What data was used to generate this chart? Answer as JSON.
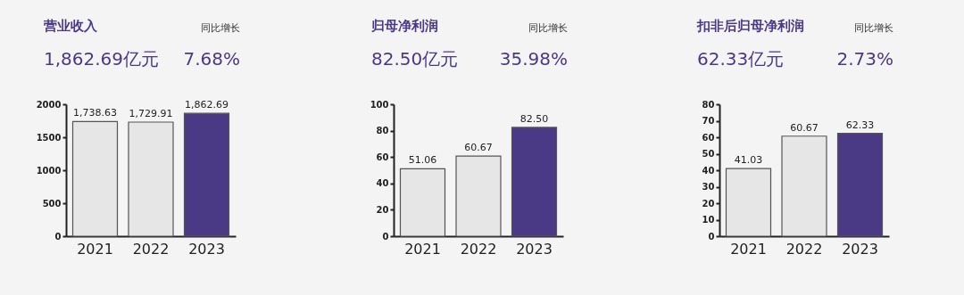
{
  "chart_data": [
    {
      "type": "bar",
      "title": "营业收入",
      "annotations": [
        "同比增长",
        "1,862.69亿元",
        "7.68%"
      ],
      "categories": [
        "2021",
        "2022",
        "2023"
      ],
      "values": [
        1738.63,
        1729.91,
        1862.69
      ],
      "value_labels": [
        "1,738.63",
        "1,729.91",
        "1,862.69"
      ],
      "colors": [
        "#e6e6e6",
        "#e6e6e6",
        "#4a3a85"
      ],
      "ylim": [
        0,
        2000
      ],
      "yticks": [
        0,
        500,
        1000,
        1500,
        2000
      ]
    },
    {
      "type": "bar",
      "title": "归母净利润",
      "annotations": [
        "同比增长",
        "82.50亿元",
        "35.98%"
      ],
      "categories": [
        "2021",
        "2022",
        "2023"
      ],
      "values": [
        51.06,
        60.67,
        82.5
      ],
      "value_labels": [
        "51.06",
        "60.67",
        "82.50"
      ],
      "colors": [
        "#e6e6e6",
        "#e6e6e6",
        "#4a3a85"
      ],
      "ylim": [
        0,
        100
      ],
      "yticks": [
        0,
        20,
        40,
        60,
        80,
        100
      ]
    },
    {
      "type": "bar",
      "title": "扣非后归母净利润",
      "annotations": [
        "同比增长",
        "62.33亿元",
        "2.73%"
      ],
      "categories": [
        "2021",
        "2022",
        "2023"
      ],
      "values": [
        41.03,
        60.67,
        62.33
      ],
      "value_labels": [
        "41.03",
        "60.67",
        "62.33"
      ],
      "colors": [
        "#e6e6e6",
        "#e6e6e6",
        "#4a3a85"
      ],
      "ylim": [
        0,
        80
      ],
      "yticks": [
        0,
        10,
        20,
        30,
        40,
        50,
        60,
        70,
        80
      ]
    }
  ]
}
